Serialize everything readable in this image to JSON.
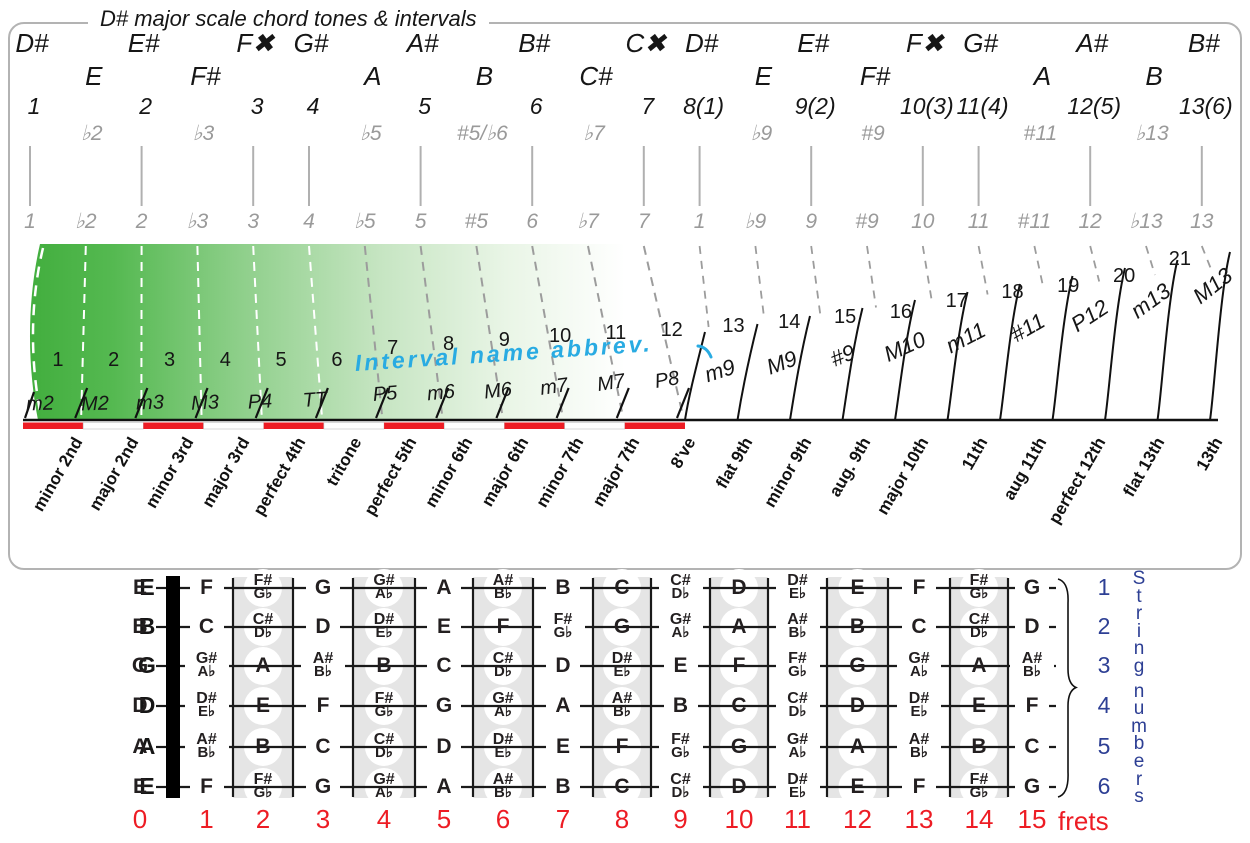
{
  "title": "D# major scale chord tones & intervals",
  "colors": {
    "red": "#ed1c24",
    "blue": "#2d3f94",
    "cyan": "#29abe2",
    "green_dark": "#42ae3e",
    "gray_text": "#9a9a9a"
  },
  "top": {
    "sharp_notes": [
      {
        "label": "D#",
        "idx": 0
      },
      {
        "label": "E#",
        "idx": 2
      },
      {
        "label": "F✖",
        "idx": 4
      },
      {
        "label": "G#",
        "idx": 5
      },
      {
        "label": "A#",
        "idx": 7
      },
      {
        "label": "B#",
        "idx": 9
      },
      {
        "label": "C✖",
        "idx": 11
      },
      {
        "label": "D#",
        "idx": 12
      },
      {
        "label": "E#",
        "idx": 14
      },
      {
        "label": "F✖",
        "idx": 16
      },
      {
        "label": "G#",
        "idx": 17
      },
      {
        "label": "A#",
        "idx": 19
      },
      {
        "label": "B#",
        "idx": 21
      }
    ],
    "natural_notes": [
      {
        "label": "E",
        "idx": 1
      },
      {
        "label": "F#",
        "idx": 3
      },
      {
        "label": "A",
        "idx": 6
      },
      {
        "label": "B",
        "idx": 8
      },
      {
        "label": "C#",
        "idx": 10
      },
      {
        "label": "E",
        "idx": 13
      },
      {
        "label": "F#",
        "idx": 15
      },
      {
        "label": "A",
        "idx": 18
      },
      {
        "label": "B",
        "idx": 20
      }
    ],
    "scale_degrees": [
      {
        "label": "1",
        "idx": 0
      },
      {
        "label": "2",
        "idx": 2
      },
      {
        "label": "3",
        "idx": 4
      },
      {
        "label": "4",
        "idx": 5
      },
      {
        "label": "5",
        "idx": 7
      },
      {
        "label": "6",
        "idx": 9
      },
      {
        "label": "7",
        "idx": 11
      },
      {
        "label": "8(1)",
        "idx": 12
      },
      {
        "label": "9(2)",
        "idx": 14
      },
      {
        "label": "10(3)",
        "idx": 16
      },
      {
        "label": "11(4)",
        "idx": 17
      },
      {
        "label": "12(5)",
        "idx": 19
      },
      {
        "label": "13(6)",
        "idx": 21
      }
    ],
    "altered_degrees": [
      {
        "label": "♭2",
        "idx": 1
      },
      {
        "label": "♭3",
        "idx": 3
      },
      {
        "label": "♭5",
        "idx": 6
      },
      {
        "label": "#5/♭6",
        "idx": 8
      },
      {
        "label": "♭7",
        "idx": 10
      },
      {
        "label": "♭9",
        "idx": 13
      },
      {
        "label": "#9",
        "idx": 15
      },
      {
        "label": "#11",
        "idx": 18
      },
      {
        "label": "♭13",
        "idx": 20
      }
    ],
    "chromatic_row": [
      "1",
      "♭2",
      "2",
      "♭3",
      "3",
      "4",
      "♭5",
      "5",
      "#5",
      "6",
      "♭7",
      "7",
      "1",
      "♭9",
      "9",
      "#9",
      "10",
      "11",
      "#11",
      "12",
      "♭13",
      "13"
    ]
  },
  "intervals": {
    "callout": "Interval name abbrev.",
    "cells": [
      {
        "semitones": 1,
        "abbrev": "m2",
        "name": "minor 2nd",
        "red": true
      },
      {
        "semitones": 2,
        "abbrev": "M2",
        "name": "major 2nd",
        "red": false
      },
      {
        "semitones": 3,
        "abbrev": "m3",
        "name": "minor 3rd",
        "red": true
      },
      {
        "semitones": 4,
        "abbrev": "M3",
        "name": "major 3rd",
        "red": false
      },
      {
        "semitones": 5,
        "abbrev": "P4",
        "name": "perfect 4th",
        "red": true
      },
      {
        "semitones": 6,
        "abbrev": "TT",
        "name": "tritone",
        "red": false
      },
      {
        "semitones": 7,
        "abbrev": "P5",
        "name": "perfect 5th",
        "red": true
      },
      {
        "semitones": 8,
        "abbrev": "m6",
        "name": "minor 6th",
        "red": false
      },
      {
        "semitones": 9,
        "abbrev": "M6",
        "name": "major 6th",
        "red": true
      },
      {
        "semitones": 10,
        "abbrev": "m7",
        "name": "minor 7th",
        "red": false
      },
      {
        "semitones": 11,
        "abbrev": "M7",
        "name": "major 7th",
        "red": true
      },
      {
        "semitones": 12,
        "abbrev": "P8",
        "name": "8've",
        "red": null
      },
      {
        "semitones": 13,
        "abbrev": "m9",
        "name": "flat 9th",
        "red": null
      },
      {
        "semitones": 14,
        "abbrev": "M9",
        "name": "minor 9th",
        "red": null
      },
      {
        "semitones": 15,
        "abbrev": "#9",
        "name": "aug. 9th",
        "red": null
      },
      {
        "semitones": 16,
        "abbrev": "M10",
        "name": "major 10th",
        "red": null
      },
      {
        "semitones": 17,
        "abbrev": "m11",
        "name": "11th",
        "red": null
      },
      {
        "semitones": 18,
        "abbrev": "#11",
        "name": "aug 11th",
        "red": null
      },
      {
        "semitones": 19,
        "abbrev": "P12",
        "name": "perfect 12th",
        "red": null
      },
      {
        "semitones": 20,
        "abbrev": "m13",
        "name": "flat 13th",
        "red": null
      },
      {
        "semitones": 21,
        "abbrev": "M13",
        "name": "13th",
        "red": null
      }
    ]
  },
  "fretboard": {
    "open_labels": [
      "E",
      "B",
      "G",
      "D",
      "A",
      "E"
    ],
    "string_numbers": [
      "1",
      "2",
      "3",
      "4",
      "5",
      "6"
    ],
    "string_numbers_label": "String numbers",
    "frets_label": "frets",
    "columns": [
      {
        "fret": "0",
        "shaded": false,
        "notes": [
          [
            "E"
          ],
          [
            "B"
          ],
          [
            "G"
          ],
          [
            "D"
          ],
          [
            "A"
          ],
          [
            "E"
          ]
        ]
      },
      {
        "fret": "1",
        "shaded": false,
        "notes": [
          [
            "F"
          ],
          [
            "C"
          ],
          [
            "G#",
            "A♭"
          ],
          [
            "D#",
            "E♭"
          ],
          [
            "A#",
            "B♭"
          ],
          [
            "F"
          ]
        ]
      },
      {
        "fret": "2",
        "shaded": true,
        "notes": [
          [
            "F#",
            "G♭"
          ],
          [
            "C#",
            "D♭"
          ],
          [
            "A"
          ],
          [
            "E"
          ],
          [
            "B"
          ],
          [
            "F#",
            "G♭"
          ]
        ]
      },
      {
        "fret": "3",
        "shaded": false,
        "notes": [
          [
            "G"
          ],
          [
            "D"
          ],
          [
            "A#",
            "B♭"
          ],
          [
            "F"
          ],
          [
            "C"
          ],
          [
            "G"
          ]
        ]
      },
      {
        "fret": "4",
        "shaded": true,
        "notes": [
          [
            "G#",
            "A♭"
          ],
          [
            "D#",
            "E♭"
          ],
          [
            "B"
          ],
          [
            "F#",
            "G♭"
          ],
          [
            "C#",
            "D♭"
          ],
          [
            "G#",
            "A♭"
          ]
        ]
      },
      {
        "fret": "5",
        "shaded": false,
        "notes": [
          [
            "A"
          ],
          [
            "E"
          ],
          [
            "C"
          ],
          [
            "G"
          ],
          [
            "D"
          ],
          [
            "A"
          ]
        ]
      },
      {
        "fret": "6",
        "shaded": true,
        "notes": [
          [
            "A#",
            "B♭"
          ],
          [
            "F"
          ],
          [
            "C#",
            "D♭"
          ],
          [
            "G#",
            "A♭"
          ],
          [
            "D#",
            "E♭"
          ],
          [
            "A#",
            "B♭"
          ]
        ]
      },
      {
        "fret": "7",
        "shaded": false,
        "notes": [
          [
            "B"
          ],
          [
            "F#",
            "G♭"
          ],
          [
            "D"
          ],
          [
            "A"
          ],
          [
            "E"
          ],
          [
            "B"
          ]
        ]
      },
      {
        "fret": "8",
        "shaded": true,
        "notes": [
          [
            "C"
          ],
          [
            "G"
          ],
          [
            "D#",
            "E♭"
          ],
          [
            "A#",
            "B♭"
          ],
          [
            "F"
          ],
          [
            "C"
          ]
        ]
      },
      {
        "fret": "9",
        "shaded": false,
        "notes": [
          [
            "C#",
            "D♭"
          ],
          [
            "G#",
            "A♭"
          ],
          [
            "E"
          ],
          [
            "B"
          ],
          [
            "F#",
            "G♭"
          ],
          [
            "C#",
            "D♭"
          ]
        ]
      },
      {
        "fret": "10",
        "shaded": true,
        "notes": [
          [
            "D"
          ],
          [
            "A"
          ],
          [
            "F"
          ],
          [
            "C"
          ],
          [
            "G"
          ],
          [
            "D"
          ]
        ]
      },
      {
        "fret": "11",
        "shaded": false,
        "notes": [
          [
            "D#",
            "E♭"
          ],
          [
            "A#",
            "B♭"
          ],
          [
            "F#",
            "G♭"
          ],
          [
            "C#",
            "D♭"
          ],
          [
            "G#",
            "A♭"
          ],
          [
            "D#",
            "E♭"
          ]
        ]
      },
      {
        "fret": "12",
        "shaded": true,
        "notes": [
          [
            "E"
          ],
          [
            "B"
          ],
          [
            "G"
          ],
          [
            "D"
          ],
          [
            "A"
          ],
          [
            "E"
          ]
        ]
      },
      {
        "fret": "13",
        "shaded": false,
        "notes": [
          [
            "F"
          ],
          [
            "C"
          ],
          [
            "G#",
            "A♭"
          ],
          [
            "D#",
            "E♭"
          ],
          [
            "A#",
            "B♭"
          ],
          [
            "F"
          ]
        ]
      },
      {
        "fret": "14",
        "shaded": true,
        "notes": [
          [
            "F#",
            "G♭"
          ],
          [
            "C#",
            "D♭"
          ],
          [
            "A"
          ],
          [
            "E"
          ],
          [
            "B"
          ],
          [
            "F#",
            "G♭"
          ]
        ]
      },
      {
        "fret": "15",
        "shaded": false,
        "notes": [
          [
            "G"
          ],
          [
            "D"
          ],
          [
            "A#",
            "B♭"
          ],
          [
            "F"
          ],
          [
            "C"
          ],
          [
            "G"
          ]
        ]
      }
    ]
  }
}
